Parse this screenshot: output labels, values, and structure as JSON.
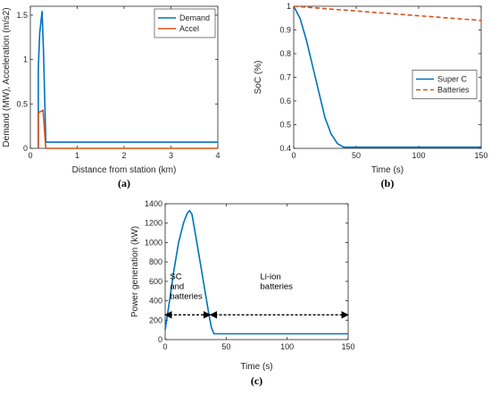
{
  "chart_data": [
    {
      "id": "a",
      "type": "line",
      "caption": "(a)",
      "xlabel": "Distance from station (km)",
      "ylabel": "Demand (MW), Acceleration (m/s2)",
      "xlim": [
        0,
        4
      ],
      "ylim": [
        0,
        1.6
      ],
      "xticks": [
        0,
        1,
        2,
        3,
        4
      ],
      "xtick_labels": [
        "0",
        "1",
        "2",
        "3",
        "4"
      ],
      "yticks": [
        0,
        0.5,
        1,
        1.5
      ],
      "ytick_labels": [
        "0",
        "0.5",
        "1",
        "1.5"
      ],
      "legend": "top-right",
      "series": [
        {
          "name": "Demand",
          "color": "#0072BD",
          "dash": "",
          "x": [
            0.17,
            0.17,
            0.2,
            0.25,
            0.28,
            0.33,
            4.0
          ],
          "y": [
            0.0,
            0.9,
            1.3,
            1.54,
            1.1,
            0.07,
            0.07
          ]
        },
        {
          "name": "Accel",
          "color": "#D95319",
          "dash": "",
          "x": [
            0.17,
            0.17,
            0.27,
            0.33,
            0.33,
            4.0
          ],
          "y": [
            0.0,
            0.4,
            0.43,
            0.0,
            0.0,
            0.0
          ]
        }
      ]
    },
    {
      "id": "b",
      "type": "line",
      "caption": "(b)",
      "xlabel": "Time (s)",
      "ylabel": "SoC (%)",
      "xlim": [
        0,
        150
      ],
      "ylim": [
        0.4,
        1.0
      ],
      "xticks": [
        0,
        50,
        100,
        150
      ],
      "xtick_labels": [
        "0",
        "50",
        "100",
        "150"
      ],
      "yticks": [
        0.4,
        0.5,
        0.6,
        0.7,
        0.8,
        0.9,
        1.0
      ],
      "ytick_labels": [
        "0.4",
        "0.5",
        "0.6",
        "0.7",
        "0.8",
        "0.9",
        "1"
      ],
      "legend": "middle-right",
      "series": [
        {
          "name": "Super C",
          "color": "#0072BD",
          "dash": "",
          "x": [
            0,
            5,
            10,
            15,
            20,
            25,
            30,
            35,
            40,
            45,
            150
          ],
          "y": [
            1.0,
            0.95,
            0.86,
            0.75,
            0.64,
            0.53,
            0.46,
            0.42,
            0.405,
            0.405,
            0.405
          ]
        },
        {
          "name": "Batteries",
          "color": "#D95319",
          "dash": "5,3",
          "x": [
            0,
            150
          ],
          "y": [
            1.0,
            0.94
          ]
        }
      ]
    },
    {
      "id": "c",
      "type": "line",
      "caption": "(c)",
      "xlabel": "Time (s)",
      "ylabel": "Power generation (kW)",
      "xlim": [
        0,
        150
      ],
      "ylim": [
        0,
        1400
      ],
      "xticks": [
        0,
        50,
        100,
        150
      ],
      "xtick_labels": [
        "0",
        "50",
        "100",
        "150"
      ],
      "yticks": [
        0,
        200,
        400,
        600,
        800,
        1000,
        1200,
        1400
      ],
      "ytick_labels": [
        "0",
        "200",
        "400",
        "600",
        "800",
        "1000",
        "1200",
        "1400"
      ],
      "series": [
        {
          "name": "",
          "color": "#0072BD",
          "dash": "",
          "x": [
            0,
            3,
            7,
            11,
            15,
            18,
            20,
            22,
            26,
            30,
            34,
            36,
            38,
            40,
            150
          ],
          "y": [
            100,
            350,
            700,
            1000,
            1200,
            1300,
            1330,
            1290,
            1000,
            700,
            400,
            250,
            120,
            60,
            60
          ]
        }
      ],
      "annotations": [
        {
          "lines": [
            "SC",
            "and",
            "batteries"
          ],
          "x": 1,
          "y": 620,
          "arrow_from": 0,
          "arrow_to": 37,
          "arrow_y": 255
        },
        {
          "lines": [
            "Li-ion",
            "batteries"
          ],
          "x": 75,
          "y": 620,
          "arrow_from": 37,
          "arrow_to": 150,
          "arrow_y": 255
        }
      ]
    }
  ]
}
